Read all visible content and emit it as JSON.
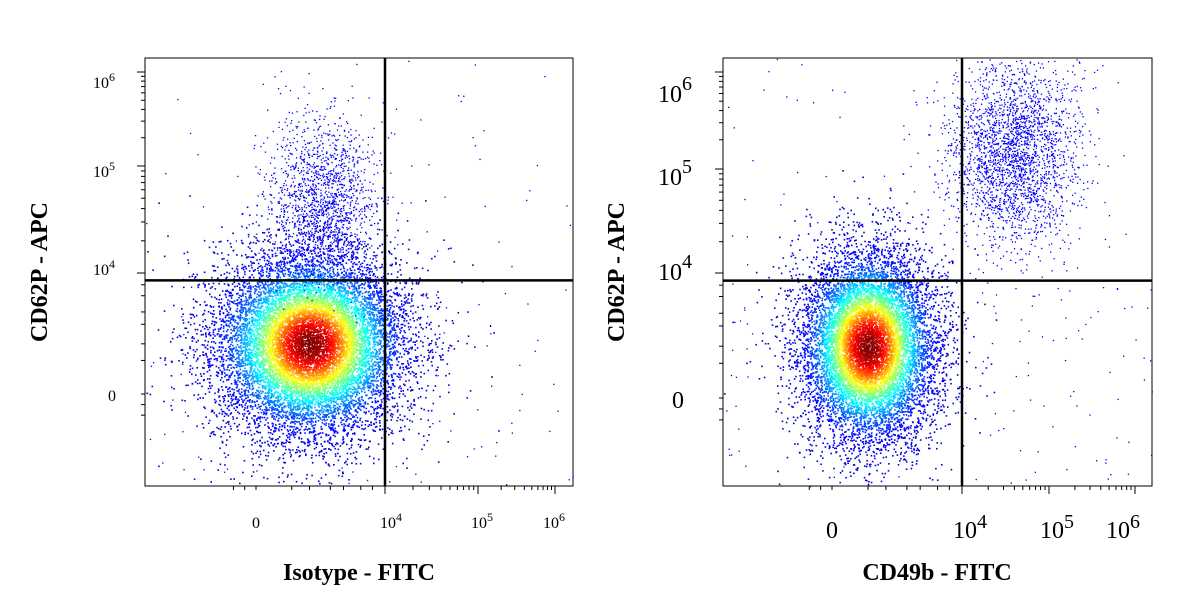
{
  "chart_data": [
    {
      "type": "scatter",
      "xlabel": "Isotype - FITC",
      "ylabel": "CD62P - APC",
      "x_scale": "biexponential",
      "y_scale": "biexponential",
      "x_ticks": [
        {
          "label": "0",
          "value": 0
        },
        {
          "label": "10",
          "exp": "4",
          "value": 10000
        },
        {
          "label": "10",
          "exp": "5",
          "value": 100000
        },
        {
          "label": "10",
          "exp": "6",
          "value": 1000000
        }
      ],
      "y_ticks": [
        {
          "label": "0",
          "value": 0
        },
        {
          "label": "10",
          "exp": "4",
          "value": 10000
        },
        {
          "label": "10",
          "exp": "5",
          "value": 100000
        },
        {
          "label": "10",
          "exp": "6",
          "value": 1000000
        }
      ],
      "quadrant_gate": {
        "x": 10000,
        "y": 8000
      },
      "populations": [
        {
          "center_x": 1000,
          "center_y": 1000,
          "density": "high",
          "colormap": "jet"
        },
        {
          "center_x": 1500,
          "center_y": 50000,
          "density": "low",
          "color": "#0000ff"
        }
      ]
    },
    {
      "type": "scatter",
      "xlabel": "CD49b - FITC",
      "ylabel": "CD62P - APC",
      "x_scale": "biexponential",
      "y_scale": "biexponential",
      "x_ticks": [
        {
          "label": "0",
          "value": 0
        },
        {
          "label": "10",
          "exp": "4",
          "value": 10000
        },
        {
          "label": "10",
          "exp": "5",
          "value": 100000
        },
        {
          "label": "10",
          "exp": "6",
          "value": 1000000
        }
      ],
      "y_ticks": [
        {
          "label": "0",
          "value": 0
        },
        {
          "label": "10",
          "exp": "4",
          "value": 10000
        },
        {
          "label": "10",
          "exp": "5",
          "value": 100000
        },
        {
          "label": "10",
          "exp": "6",
          "value": 1000000
        }
      ],
      "quadrant_gate": {
        "x": 10000,
        "y": 8000
      },
      "populations": [
        {
          "center_x": 500,
          "center_y": 1000,
          "density": "high",
          "colormap": "jet"
        },
        {
          "center_x": 40000,
          "center_y": 150000,
          "density": "medium",
          "color": "#0000ff"
        }
      ]
    }
  ]
}
